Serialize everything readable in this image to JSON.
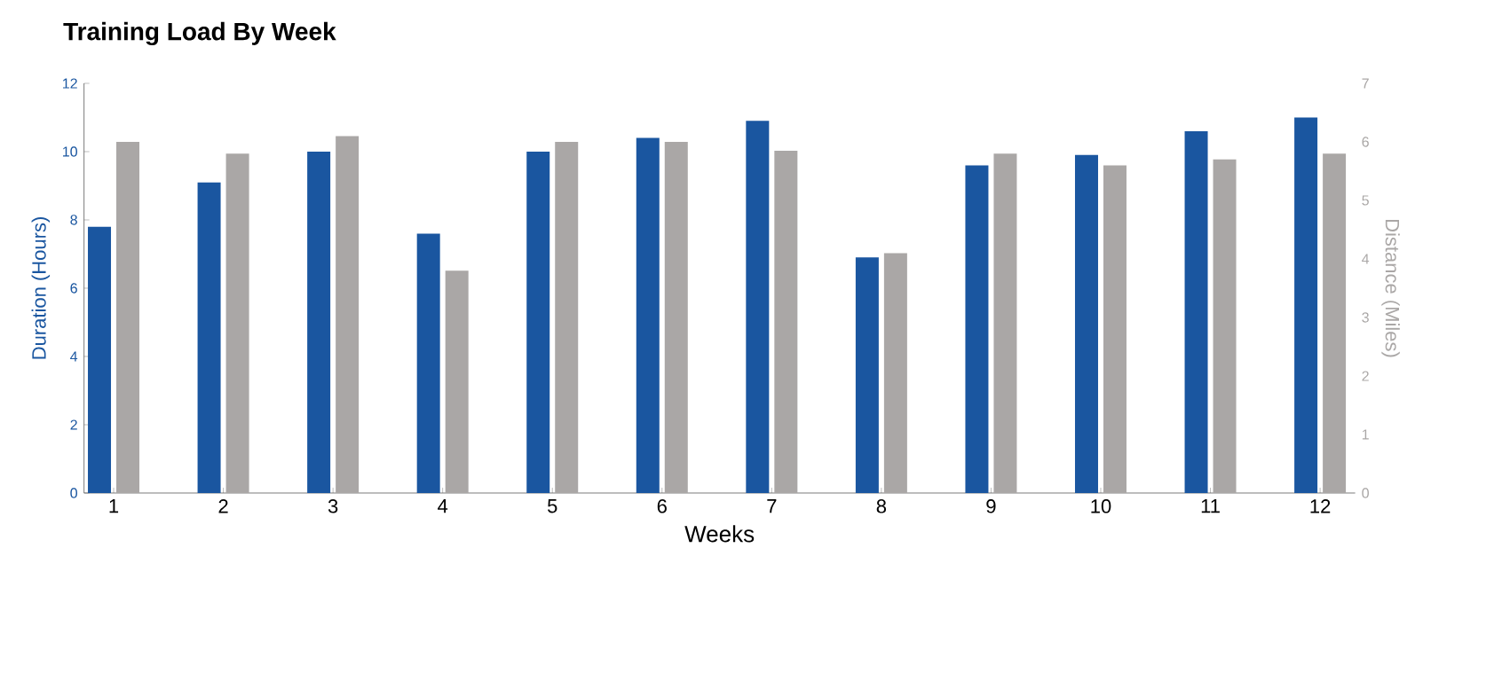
{
  "chart_data": {
    "type": "bar",
    "title": "Training Load By Week",
    "xlabel": "Weeks",
    "ylabel": "Duration (Hours)",
    "y2label": "Distance (Miles)",
    "categories": [
      "1",
      "2",
      "3",
      "4",
      "5",
      "6",
      "7",
      "8",
      "9",
      "10",
      "11",
      "12"
    ],
    "series": [
      {
        "color": "#1a56a0",
        "values": [
          7.8,
          9.1,
          10.0,
          7.6,
          10.0,
          10.4,
          10.9,
          6.9,
          9.6,
          9.9,
          10.6,
          11.0
        ]
      },
      {
        "color": "#aaa7a6",
        "axis": "y2",
        "values": [
          6.0,
          5.8,
          6.1,
          3.8,
          6.0,
          6.0,
          5.85,
          4.1,
          5.8,
          5.6,
          5.7,
          5.8
        ]
      }
    ],
    "ylim": [
      0,
      12
    ],
    "yticks": [
      0,
      2,
      4,
      6,
      8,
      10,
      12
    ],
    "y2lim": [
      0,
      7
    ],
    "y2ticks": [
      0,
      1,
      2,
      3,
      4,
      5,
      6,
      7
    ]
  }
}
